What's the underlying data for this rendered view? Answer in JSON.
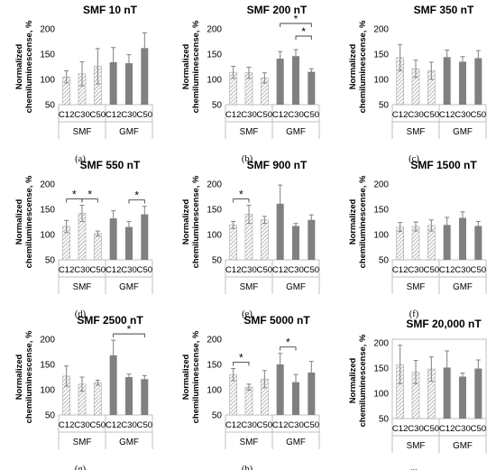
{
  "colors": {
    "smf_fill": "#ffffff",
    "smf_pattern": "#8c8c8c",
    "gmf_fill": "#808080",
    "error_bar": "#808080",
    "axis": "#bfbfbf",
    "text": "#000000"
  },
  "chart_data": [
    {
      "type": "bar",
      "label": "(a)",
      "title": "SMF 10 nT",
      "ylabel": "Normalized chemiluminescense, %",
      "ylim": [
        50,
        200
      ],
      "yticks": [
        50,
        100,
        150,
        200
      ],
      "categories": [
        "C12",
        "C30",
        "C50",
        "C12",
        "C30",
        "C50"
      ],
      "groups": [
        "SMF",
        "GMF"
      ],
      "values": [
        105,
        111,
        126,
        134,
        132,
        162
      ],
      "errors": [
        12,
        24,
        35,
        29,
        17,
        30
      ],
      "significance": []
    },
    {
      "type": "bar",
      "label": "(b)",
      "title": "SMF 200 nT",
      "ylabel": "Normalized chemiluminescense, %",
      "ylim": [
        50,
        200
      ],
      "yticks": [
        50,
        100,
        150,
        200
      ],
      "categories": [
        "C12",
        "C30",
        "C50",
        "C12",
        "C30",
        "C50"
      ],
      "groups": [
        "SMF",
        "GMF"
      ],
      "values": [
        114,
        113,
        103,
        141,
        146,
        115
      ],
      "errors": [
        12,
        11,
        10,
        14,
        13,
        6
      ],
      "significance": [
        {
          "from": 3,
          "to": 5,
          "level": 0,
          "mark": "*"
        },
        {
          "from": 4,
          "to": 5,
          "level": 1,
          "mark": "*"
        }
      ]
    },
    {
      "type": "bar",
      "label": "(c)",
      "title": "SMF 350 nT",
      "ylabel": "Normalized chemiluminescense, %",
      "ylim": [
        50,
        200
      ],
      "yticks": [
        50,
        100,
        150,
        200
      ],
      "categories": [
        "C12",
        "C30",
        "C50",
        "C12",
        "C30",
        "C50"
      ],
      "groups": [
        "SMF",
        "GMF"
      ],
      "values": [
        143,
        121,
        117,
        144,
        135,
        142
      ],
      "errors": [
        26,
        17,
        17,
        14,
        10,
        15
      ],
      "significance": []
    },
    {
      "type": "bar",
      "label": "(d)",
      "title": "SMF 550 nT",
      "ylabel": "Normalized chemiluminescense, %",
      "ylim": [
        50,
        200
      ],
      "yticks": [
        50,
        100,
        150,
        200
      ],
      "categories": [
        "C12",
        "C30",
        "C50",
        "C12",
        "C30",
        "C50"
      ],
      "groups": [
        "SMF",
        "GMF"
      ],
      "values": [
        116,
        142,
        102,
        132,
        115,
        140
      ],
      "errors": [
        12,
        16,
        5,
        15,
        11,
        16
      ],
      "significance": [
        {
          "from": 0,
          "to": 1,
          "level": 0,
          "mark": "*"
        },
        {
          "from": 1,
          "to": 2,
          "level": 0,
          "mark": "*"
        },
        {
          "from": 4,
          "to": 5,
          "level": 0,
          "mark": "*"
        }
      ]
    },
    {
      "type": "bar",
      "label": "(e)",
      "title": "SMF 900 nT",
      "ylabel": "Normalized chemiluminescense, %",
      "ylim": [
        50,
        200
      ],
      "yticks": [
        50,
        100,
        150,
        200
      ],
      "categories": [
        "C12",
        "C30",
        "C50",
        "C12",
        "C30",
        "C50"
      ],
      "groups": [
        "SMF",
        "GMF"
      ],
      "values": [
        119,
        140,
        129,
        161,
        117,
        129
      ],
      "errors": [
        7,
        18,
        7,
        37,
        5,
        10
      ],
      "significance": [
        {
          "from": 0,
          "to": 1,
          "level": 0,
          "mark": "*"
        }
      ]
    },
    {
      "type": "bar",
      "label": "(f)",
      "title": "SMF 1500 nT",
      "ylabel": "Normalized chemiluminescense, %",
      "ylim": [
        50,
        200
      ],
      "yticks": [
        50,
        100,
        150,
        200
      ],
      "categories": [
        "C12",
        "C30",
        "C50",
        "C12",
        "C30",
        "C50"
      ],
      "groups": [
        "SMF",
        "GMF"
      ],
      "values": [
        115,
        116,
        118,
        119,
        133,
        117
      ],
      "errors": [
        9,
        9,
        11,
        15,
        12,
        9
      ],
      "significance": []
    },
    {
      "type": "bar",
      "label": "(g)",
      "title": "SMF 2500 nT",
      "ylabel": "Normalized chemiluminescense, %",
      "ylim": [
        50,
        200
      ],
      "yticks": [
        50,
        100,
        150,
        200
      ],
      "categories": [
        "C12",
        "C30",
        "C50",
        "C12",
        "C30",
        "C50"
      ],
      "groups": [
        "SMF",
        "GMF"
      ],
      "values": [
        127,
        111,
        114,
        168,
        125,
        121
      ],
      "errors": [
        20,
        14,
        5,
        30,
        6,
        7
      ],
      "significance": [
        {
          "from": 3,
          "to": 5,
          "level": 0,
          "mark": "*"
        }
      ]
    },
    {
      "type": "bar",
      "label": "(h)",
      "title": "SMF 5000 nT",
      "ylabel": "Normalized chemiluminescense, %",
      "ylim": [
        50,
        200
      ],
      "yticks": [
        50,
        100,
        150,
        200
      ],
      "categories": [
        "C12",
        "C30",
        "C50",
        "C12",
        "C30",
        "C50"
      ],
      "groups": [
        "SMF",
        "GMF"
      ],
      "values": [
        130,
        105,
        121,
        150,
        115,
        134
      ],
      "errors": [
        12,
        6,
        17,
        22,
        15,
        22
      ],
      "significance": [
        {
          "from": 0,
          "to": 1,
          "level": 0,
          "mark": "*"
        },
        {
          "from": 3,
          "to": 4,
          "level": 0,
          "mark": "*"
        }
      ]
    },
    {
      "type": "bar",
      "label": "(i)",
      "title": "SMF 20,000 nT",
      "ylabel": "Normalized chemiluminescense, %",
      "ylim": [
        50,
        200
      ],
      "yticks": [
        50,
        100,
        150,
        200
      ],
      "categories": [
        "C12",
        "C30",
        "C50",
        "C12",
        "C30",
        "C50"
      ],
      "groups": [
        "SMF",
        "GMF"
      ],
      "values": [
        157,
        142,
        148,
        151,
        133,
        149
      ],
      "errors": [
        38,
        23,
        24,
        33,
        7,
        17
      ],
      "significance": []
    }
  ]
}
